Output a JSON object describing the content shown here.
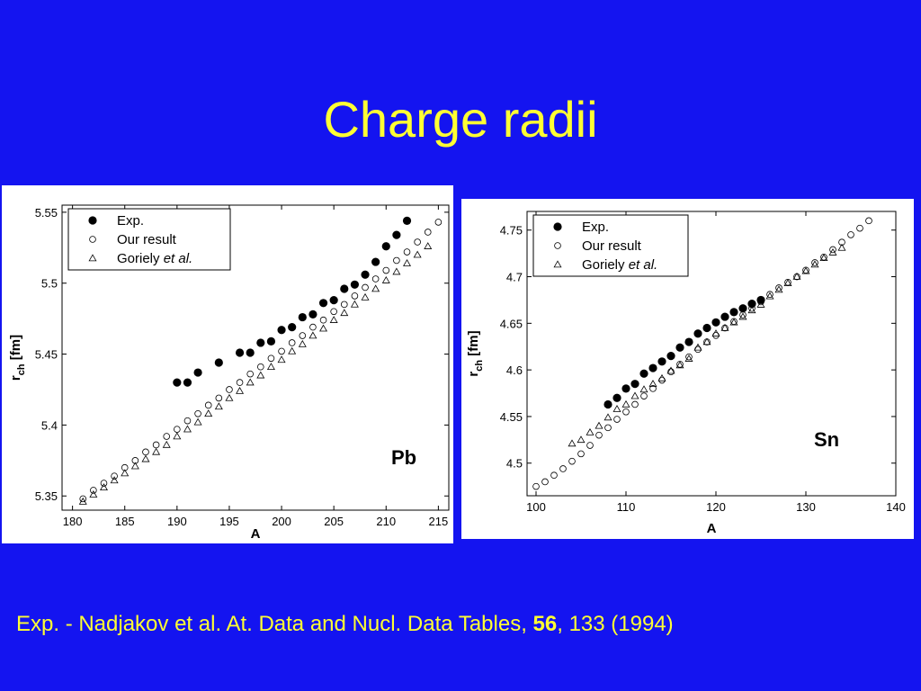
{
  "slide": {
    "title": "Charge radii"
  },
  "footer": {
    "prefix": "Exp.  - Nadjakov et al.  At. Data and Nucl. Data Tables, ",
    "volume": "56",
    "suffix": ", 133 (1994)"
  },
  "colors": {
    "background": "#1414f0",
    "text": "#ffff33",
    "panel": "#ffffff"
  },
  "chart_data": [
    {
      "id": "pb",
      "type": "scatter",
      "label": "Pb",
      "xlabel": "A",
      "ylabel": "r_ch [fm]",
      "xlim": [
        179,
        216
      ],
      "ylim": [
        5.34,
        5.555
      ],
      "xticks": [
        180,
        185,
        190,
        195,
        200,
        205,
        210,
        215
      ],
      "yticks": [
        5.35,
        5.4,
        5.45,
        5.5,
        5.55
      ],
      "ytick_labels": [
        "5.35",
        "5.4",
        "5.45",
        "5.5",
        "5.55"
      ],
      "legend_position": "top-left",
      "legend": [
        {
          "marker": "filled-circle",
          "text": "Exp.",
          "italic": ""
        },
        {
          "marker": "open-circle",
          "text": "Our result",
          "italic": ""
        },
        {
          "marker": "open-triangle",
          "text": "Goriely ",
          "italic": "et al."
        }
      ],
      "series": [
        {
          "marker": "filled-circle",
          "x": [
            190,
            191,
            192,
            194,
            196,
            197,
            198,
            199,
            200,
            201,
            202,
            203,
            204,
            205,
            206,
            207,
            208,
            209,
            210,
            211,
            212
          ],
          "y": [
            5.43,
            5.43,
            5.437,
            5.444,
            5.451,
            5.451,
            5.458,
            5.459,
            5.467,
            5.469,
            5.476,
            5.478,
            5.486,
            5.488,
            5.496,
            5.499,
            5.506,
            5.515,
            5.526,
            5.534,
            5.544
          ]
        },
        {
          "marker": "open-circle",
          "x": [
            181,
            182,
            183,
            184,
            185,
            186,
            187,
            188,
            189,
            190,
            191,
            192,
            193,
            194,
            195,
            196,
            197,
            198,
            199,
            200,
            201,
            202,
            203,
            204,
            205,
            206,
            207,
            208,
            209,
            210,
            211,
            212,
            213,
            214,
            215
          ],
          "y": [
            5.348,
            5.354,
            5.359,
            5.364,
            5.37,
            5.375,
            5.381,
            5.386,
            5.392,
            5.397,
            5.403,
            5.408,
            5.414,
            5.419,
            5.425,
            5.43,
            5.436,
            5.441,
            5.447,
            5.452,
            5.458,
            5.463,
            5.469,
            5.474,
            5.48,
            5.485,
            5.491,
            5.497,
            5.503,
            5.509,
            5.516,
            5.522,
            5.529,
            5.536,
            5.543
          ]
        },
        {
          "marker": "open-triangle",
          "x": [
            181,
            182,
            183,
            184,
            185,
            186,
            187,
            188,
            189,
            190,
            191,
            192,
            193,
            194,
            195,
            196,
            197,
            198,
            199,
            200,
            201,
            202,
            203,
            204,
            205,
            206,
            207,
            208,
            209,
            210,
            211,
            212,
            213,
            214
          ],
          "y": [
            5.346,
            5.351,
            5.356,
            5.361,
            5.366,
            5.371,
            5.376,
            5.381,
            5.386,
            5.392,
            5.397,
            5.402,
            5.408,
            5.413,
            5.419,
            5.424,
            5.43,
            5.435,
            5.441,
            5.446,
            5.452,
            5.457,
            5.463,
            5.468,
            5.474,
            5.479,
            5.485,
            5.49,
            5.496,
            5.502,
            5.508,
            5.514,
            5.52,
            5.526
          ]
        }
      ]
    },
    {
      "id": "sn",
      "type": "scatter",
      "label": "Sn",
      "xlabel": "A",
      "ylabel": "r_ch [fm]",
      "xlim": [
        99,
        140
      ],
      "ylim": [
        4.465,
        4.77
      ],
      "xticks": [
        100,
        110,
        120,
        130,
        140
      ],
      "yticks": [
        4.5,
        4.55,
        4.6,
        4.65,
        4.7,
        4.75
      ],
      "ytick_labels": [
        "4.5",
        "4.55",
        "4.6",
        "4.65",
        "4.7",
        "4.75"
      ],
      "legend_position": "top-left",
      "legend": [
        {
          "marker": "filled-circle",
          "text": "Exp.",
          "italic": ""
        },
        {
          "marker": "open-circle",
          "text": "Our result",
          "italic": ""
        },
        {
          "marker": "open-triangle",
          "text": "Goriely ",
          "italic": "et al."
        }
      ],
      "series": [
        {
          "marker": "filled-circle",
          "x": [
            108,
            109,
            110,
            111,
            112,
            113,
            114,
            115,
            116,
            117,
            118,
            119,
            120,
            121,
            122,
            123,
            124,
            125
          ],
          "y": [
            4.563,
            4.57,
            4.58,
            4.585,
            4.596,
            4.602,
            4.609,
            4.615,
            4.624,
            4.63,
            4.639,
            4.645,
            4.651,
            4.657,
            4.662,
            4.666,
            4.671,
            4.675
          ]
        },
        {
          "marker": "open-circle",
          "x": [
            100,
            101,
            102,
            103,
            104,
            105,
            106,
            107,
            108,
            109,
            110,
            111,
            112,
            113,
            114,
            115,
            116,
            117,
            118,
            119,
            120,
            121,
            122,
            123,
            124,
            125,
            126,
            127,
            128,
            129,
            130,
            131,
            132,
            133,
            134,
            135,
            136,
            137
          ],
          "y": [
            4.475,
            4.48,
            4.487,
            4.494,
            4.502,
            4.51,
            4.519,
            4.53,
            4.538,
            4.547,
            4.555,
            4.563,
            4.572,
            4.58,
            4.589,
            4.598,
            4.606,
            4.614,
            4.622,
            4.63,
            4.637,
            4.645,
            4.652,
            4.659,
            4.666,
            4.673,
            4.681,
            4.688,
            4.694,
            4.7,
            4.707,
            4.715,
            4.721,
            4.729,
            4.737,
            4.745,
            4.752,
            4.76
          ]
        },
        {
          "marker": "open-triangle",
          "x": [
            104,
            105,
            106,
            107,
            108,
            109,
            110,
            111,
            112,
            113,
            114,
            115,
            116,
            117,
            118,
            119,
            120,
            121,
            122,
            123,
            124,
            125,
            126,
            127,
            128,
            129,
            130,
            131,
            132,
            133,
            134
          ],
          "y": [
            4.521,
            4.525,
            4.533,
            4.54,
            4.549,
            4.558,
            4.563,
            4.572,
            4.579,
            4.585,
            4.591,
            4.599,
            4.605,
            4.612,
            4.624,
            4.63,
            4.639,
            4.645,
            4.651,
            4.657,
            4.664,
            4.67,
            4.679,
            4.686,
            4.693,
            4.7,
            4.706,
            4.713,
            4.72,
            4.726,
            4.731
          ]
        }
      ]
    }
  ]
}
